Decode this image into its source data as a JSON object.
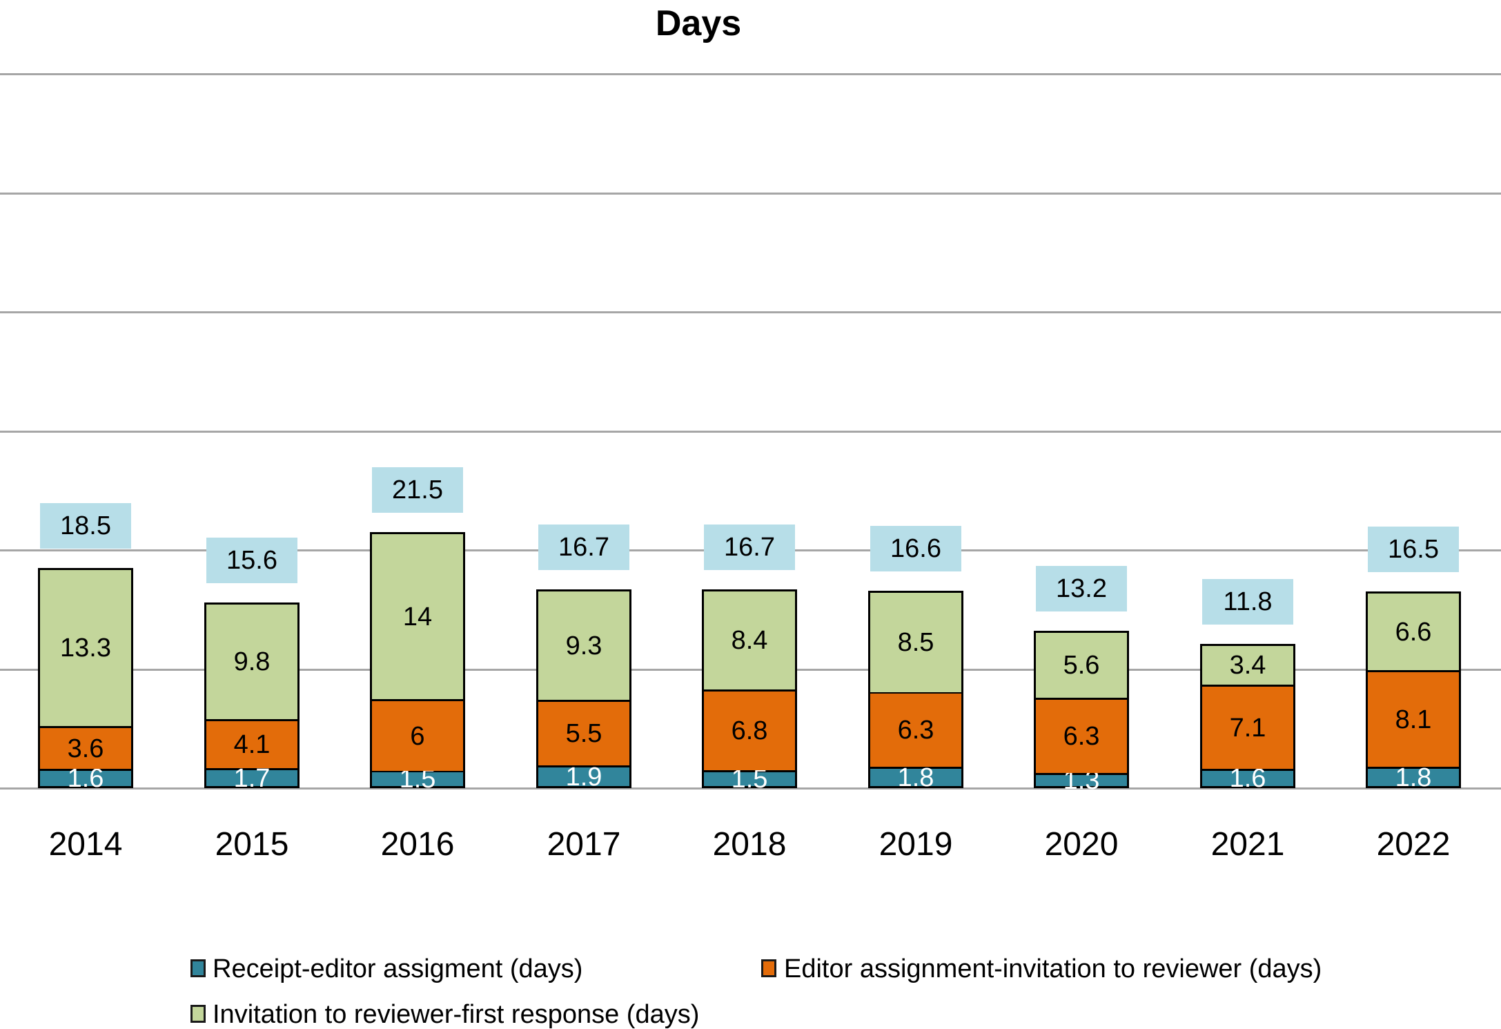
{
  "title": "Days",
  "colors": {
    "receipt": "#31859B",
    "editor": "#E36C0A",
    "invitation": "#C3D69B",
    "total_box": "#B7DEE8",
    "bar_border": "#000000",
    "gridline": "#A6A6A6"
  },
  "legend": {
    "items": [
      {
        "key": "receipt",
        "label": "Receipt-editor assigment (days)"
      },
      {
        "key": "editor",
        "label": "Editor assignment-invitation to reviewer (days)"
      },
      {
        "key": "invitation",
        "label": "Invitation to reviewer-first response (days)"
      }
    ]
  },
  "chart_data": {
    "type": "bar",
    "stacked": true,
    "title": "Days",
    "xlabel": "",
    "ylabel": "",
    "ylim": [
      0,
      60
    ],
    "gridline_step": 10,
    "grid": true,
    "legend_position": "bottom",
    "y_axis_labels_visible": false,
    "categories": [
      "2014",
      "2015",
      "2016",
      "2017",
      "2018",
      "2019",
      "2020",
      "2021",
      "2022"
    ],
    "series": [
      {
        "name": "Receipt-editor assigment (days)",
        "key": "receipt",
        "color": "#31859B",
        "label_color": "#FFFFFF",
        "values": [
          1.6,
          1.7,
          1.5,
          1.9,
          1.5,
          1.8,
          1.3,
          1.6,
          1.8
        ],
        "labels": [
          "1.6",
          "1.7",
          "1.5",
          "1.9",
          "1.5",
          "1.8",
          "1.3",
          "1.6",
          "1.8"
        ]
      },
      {
        "name": "Editor assignment-invitation to reviewer (days)",
        "key": "editor",
        "color": "#E36C0A",
        "label_color": "#000000",
        "values": [
          3.6,
          4.1,
          6,
          5.5,
          6.8,
          6.3,
          6.3,
          7.1,
          8.1
        ],
        "labels": [
          "3.6",
          "4.1",
          "6",
          "5.5",
          "6.8",
          "6.3",
          "6.3",
          "7.1",
          "8.1"
        ]
      },
      {
        "name": "Invitation to reviewer-first response (days)",
        "key": "invitation",
        "color": "#C3D69B",
        "label_color": "#000000",
        "values": [
          13.3,
          9.8,
          14,
          9.3,
          8.4,
          8.5,
          5.6,
          3.4,
          6.6
        ],
        "labels": [
          "13.3",
          "9.8",
          "14",
          "9.3",
          "8.4",
          "8.5",
          "5.6",
          "3.4",
          "6.6"
        ]
      }
    ],
    "totals": {
      "box_color": "#B7DEE8",
      "values": [
        18.5,
        15.6,
        21.5,
        16.7,
        16.7,
        16.6,
        13.2,
        11.8,
        16.5
      ],
      "labels": [
        "18.5",
        "15.6",
        "21.5",
        "16.7",
        "16.7",
        "16.6",
        "13.2",
        "11.8",
        "16.5"
      ]
    }
  }
}
